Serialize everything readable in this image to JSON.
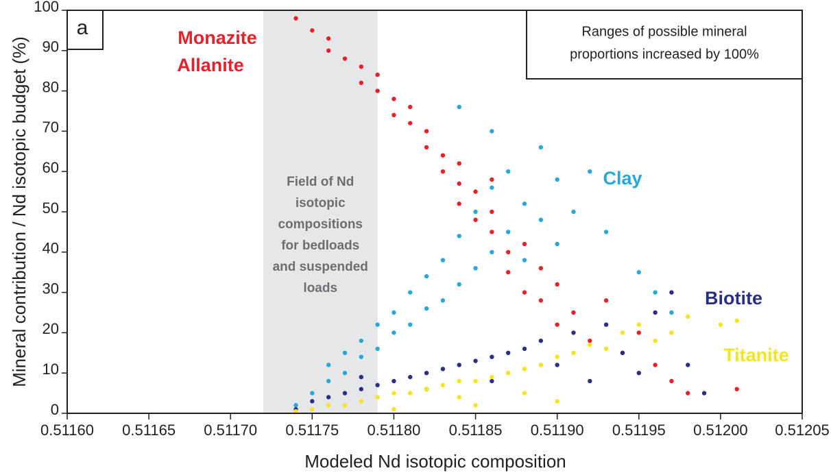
{
  "chart_data": {
    "type": "scatter",
    "panel_label": "a",
    "x_label": "Modeled Nd isotopic composition",
    "y_label": "Mineral contribution /  Nd isotopic budget (%)",
    "note": [
      "Ranges of possible mineral",
      "proportions increased by 100%"
    ],
    "shaded_region": {
      "xlim": [
        0.51172,
        0.51179
      ],
      "color": "#e6e7e8",
      "label": [
        "Field of Nd",
        "isotopic",
        "compositions",
        "for bedloads",
        "and suspended",
        "loads"
      ]
    },
    "xlim": [
      0.5116,
      0.51205
    ],
    "ylim": [
      0,
      100
    ],
    "xticks": [
      {
        "value": 0.5116,
        "label": "0.51160"
      },
      {
        "value": 0.51165,
        "label": "0.51165"
      },
      {
        "value": 0.5117,
        "label": "0.51170"
      },
      {
        "value": 0.51175,
        "label": "0.51175"
      },
      {
        "value": 0.5118,
        "label": "0.51180"
      },
      {
        "value": 0.51185,
        "label": "0.51185"
      },
      {
        "value": 0.5119,
        "label": "0.51190"
      },
      {
        "value": 0.51195,
        "label": "0.51195"
      },
      {
        "value": 0.512,
        "label": "0.51200"
      },
      {
        "value": 0.51205,
        "label": "0.51205"
      }
    ],
    "yticks": [
      0,
      10,
      20,
      30,
      40,
      50,
      60,
      70,
      80,
      90,
      100
    ],
    "grid": false,
    "series": [
      {
        "name": "Clay",
        "color": "#29a7d8",
        "x": [
          0.51174,
          0.51175,
          0.51176,
          0.51176,
          0.51177,
          0.51177,
          0.51178,
          0.51178,
          0.51179,
          0.51179,
          0.5118,
          0.5118,
          0.51181,
          0.51181,
          0.51182,
          0.51182,
          0.51183,
          0.51183,
          0.51184,
          0.51184,
          0.51185,
          0.51185,
          0.51186,
          0.51186,
          0.51187,
          0.51187,
          0.51188,
          0.51188,
          0.51189,
          0.51189,
          0.5119,
          0.5119,
          0.51191,
          0.51192,
          0.51193,
          0.51195,
          0.51196,
          0.51184,
          0.51186,
          0.51197
        ],
        "values": [
          2,
          5,
          8,
          12,
          15,
          10,
          18,
          14,
          22,
          16,
          25,
          20,
          30,
          22,
          34,
          26,
          38,
          28,
          44,
          32,
          50,
          36,
          56,
          40,
          60,
          45,
          52,
          38,
          48,
          66,
          58,
          42,
          50,
          60,
          45,
          35,
          30,
          76,
          70,
          25
        ]
      },
      {
        "name": [
          "Monazite",
          "Allanite"
        ],
        "color": "#e8202a",
        "x": [
          0.51174,
          0.51175,
          0.51176,
          0.51176,
          0.51177,
          0.51178,
          0.51178,
          0.51179,
          0.5118,
          0.5118,
          0.51181,
          0.51182,
          0.51182,
          0.51183,
          0.51183,
          0.51184,
          0.51184,
          0.51185,
          0.51185,
          0.51186,
          0.51186,
          0.51187,
          0.51187,
          0.51188,
          0.51188,
          0.51189,
          0.51189,
          0.5119,
          0.5119,
          0.51191,
          0.51192,
          0.51193,
          0.51194,
          0.51195,
          0.51196,
          0.51197,
          0.51198,
          0.51179,
          0.51181,
          0.51184,
          0.51186,
          0.51201
        ],
        "values": [
          98,
          95,
          93,
          90,
          88,
          86,
          82,
          80,
          78,
          74,
          72,
          70,
          66,
          64,
          60,
          57,
          52,
          55,
          48,
          45,
          50,
          40,
          35,
          42,
          30,
          28,
          36,
          22,
          32,
          25,
          18,
          28,
          15,
          20,
          12,
          8,
          5,
          84,
          76,
          62,
          58,
          6
        ]
      },
      {
        "name": "Biotite",
        "color": "#2b2e86",
        "x": [
          0.51174,
          0.51175,
          0.51176,
          0.51177,
          0.51178,
          0.51179,
          0.5118,
          0.51181,
          0.51182,
          0.51183,
          0.51184,
          0.51185,
          0.51186,
          0.51187,
          0.51188,
          0.51189,
          0.5119,
          0.51191,
          0.51192,
          0.51193,
          0.51194,
          0.51195,
          0.51196,
          0.51197,
          0.51198,
          0.51199,
          0.51178,
          0.51182,
          0.51186
        ],
        "values": [
          1,
          3,
          4,
          5,
          6,
          7,
          8,
          9,
          10,
          11,
          12,
          13,
          14,
          15,
          16,
          18,
          12,
          20,
          8,
          22,
          15,
          10,
          25,
          30,
          12,
          5,
          9,
          6,
          8
        ]
      },
      {
        "name": "Titanite",
        "color": "#f6e51a",
        "x": [
          0.51174,
          0.51175,
          0.51176,
          0.51177,
          0.51178,
          0.51179,
          0.5118,
          0.51181,
          0.51182,
          0.51183,
          0.51184,
          0.51185,
          0.51186,
          0.51187,
          0.51188,
          0.51189,
          0.5119,
          0.51191,
          0.51192,
          0.51193,
          0.51194,
          0.51195,
          0.51196,
          0.51197,
          0.51198,
          0.512,
          0.51201,
          0.5118,
          0.51185,
          0.5119,
          0.51184,
          0.51188
        ],
        "values": [
          0.5,
          1,
          2,
          2,
          3,
          4,
          5,
          5,
          6,
          7,
          8,
          8,
          9,
          10,
          11,
          12,
          14,
          15,
          17,
          16,
          20,
          22,
          18,
          20,
          24,
          22,
          23,
          1,
          2,
          3,
          4,
          5
        ]
      }
    ]
  }
}
